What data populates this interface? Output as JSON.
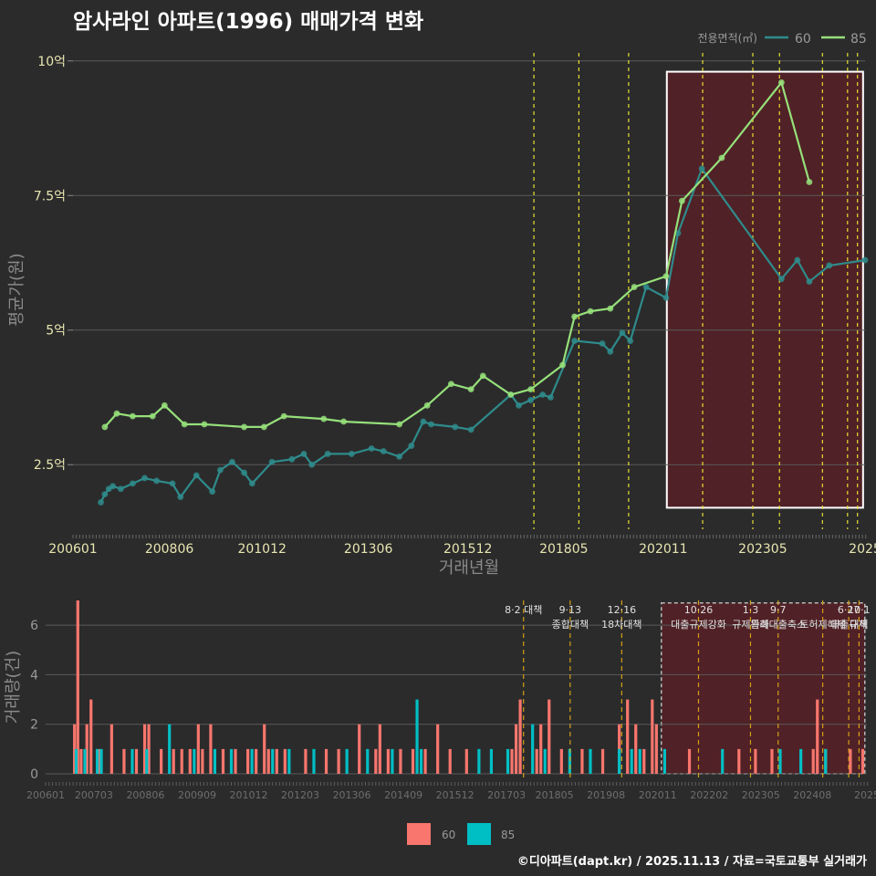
{
  "title": "암사라인 아파트(1996) 매매가격 변화",
  "credit": "©디아파트(dapt.kr) / 2025.11.13 / 자료=국토교통부 실거래가",
  "colors": {
    "s60_line": "#2f8b8b",
    "s85_line": "#96e07a",
    "bar60": "#f8766d",
    "bar85": "#00bfc4",
    "policy": "#e8e030",
    "policy2": "#d4a017",
    "highlight": "#5a1f26",
    "box": "#ffffff"
  },
  "chart_data": [
    {
      "type": "line",
      "title": "암사라인 아파트(1996) 매매가격 변화",
      "xlabel": "거래년월",
      "ylabel": "평균가(원)",
      "legend_title": "전용면적(㎡)",
      "legend_position": "top-right",
      "xlim": [
        2006.0,
        2025.9
      ],
      "ylim": [
        1.3,
        10.2
      ],
      "x_ticks": [
        {
          "x": 2006.0,
          "label": "200601"
        },
        {
          "x": 2008.42,
          "label": "200806"
        },
        {
          "x": 2010.75,
          "label": "201012"
        },
        {
          "x": 2013.42,
          "label": "201306"
        },
        {
          "x": 2015.92,
          "label": "201512"
        },
        {
          "x": 2018.33,
          "label": "201805"
        },
        {
          "x": 2020.83,
          "label": "202011"
        },
        {
          "x": 2023.33,
          "label": "202305"
        },
        {
          "x": 2025.9,
          "label": "2025"
        }
      ],
      "y_ticks": [
        {
          "y": 2.5,
          "label": "2.5억"
        },
        {
          "y": 5,
          "label": "5억"
        },
        {
          "y": 7.5,
          "label": "7.5억"
        },
        {
          "y": 10,
          "label": "10억"
        }
      ],
      "policy_lines": [
        2017.58,
        2018.71,
        2019.96,
        2021.82,
        2023.08,
        2023.75,
        2024.83,
        2025.46,
        2025.71
      ],
      "highlight": {
        "x0": 2020.92,
        "x1": 2025.85,
        "y0": 1.7,
        "y1": 9.8
      },
      "series": [
        {
          "name": "60",
          "x": [
            2006.7,
            2006.8,
            2006.9,
            2007.0,
            2007.2,
            2007.5,
            2007.8,
            2008.1,
            2008.5,
            2008.7,
            2009.1,
            2009.5,
            2009.7,
            2010.0,
            2010.3,
            2010.5,
            2011.0,
            2011.5,
            2011.8,
            2012.0,
            2012.4,
            2013.0,
            2013.5,
            2013.8,
            2014.2,
            2014.5,
            2014.8,
            2015.0,
            2015.6,
            2016.0,
            2017.0,
            2017.2,
            2017.5,
            2017.8,
            2018.0,
            2018.6,
            2019.3,
            2019.5,
            2019.8,
            2020.0,
            2020.4,
            2020.9,
            2021.2,
            2021.8,
            2023.8,
            2024.2,
            2024.5,
            2025.0,
            2025.9
          ],
          "values": [
            1.8,
            1.95,
            2.05,
            2.1,
            2.05,
            2.15,
            2.25,
            2.2,
            2.15,
            1.9,
            2.3,
            2.0,
            2.4,
            2.55,
            2.35,
            2.15,
            2.55,
            2.6,
            2.7,
            2.5,
            2.7,
            2.7,
            2.8,
            2.75,
            2.65,
            2.85,
            3.3,
            3.25,
            3.2,
            3.15,
            3.8,
            3.6,
            3.7,
            3.8,
            3.75,
            4.8,
            4.75,
            4.6,
            4.95,
            4.8,
            5.8,
            5.6,
            6.8,
            8.0,
            5.95,
            6.3,
            5.9,
            6.2,
            6.3
          ]
        },
        {
          "name": "85",
          "x": [
            2006.8,
            2007.1,
            2007.5,
            2008.0,
            2008.3,
            2008.8,
            2009.3,
            2010.3,
            2010.8,
            2011.3,
            2012.3,
            2012.8,
            2014.2,
            2014.9,
            2015.5,
            2016.0,
            2016.3,
            2017.0,
            2017.5,
            2018.3,
            2018.6,
            2019.0,
            2019.5,
            2020.1,
            2020.9,
            2021.3,
            2022.3,
            2023.8,
            2024.5
          ],
          "values": [
            3.2,
            3.45,
            3.4,
            3.4,
            3.6,
            3.25,
            3.25,
            3.2,
            3.2,
            3.4,
            3.35,
            3.3,
            3.25,
            3.6,
            4.0,
            3.9,
            4.15,
            3.8,
            3.9,
            4.35,
            5.25,
            5.35,
            5.4,
            5.8,
            6.0,
            7.4,
            8.2,
            9.6,
            7.75
          ]
        }
      ]
    },
    {
      "type": "bar",
      "ylabel": "거래량(건)",
      "xlim": [
        2006.0,
        2025.9
      ],
      "ylim": [
        0,
        7
      ],
      "x_ticks": [
        {
          "x": 2006.0,
          "label": "200601"
        },
        {
          "x": 2007.17,
          "label": "200703"
        },
        {
          "x": 2008.42,
          "label": "200806"
        },
        {
          "x": 2009.67,
          "label": "200909"
        },
        {
          "x": 2010.92,
          "label": "201012"
        },
        {
          "x": 2012.17,
          "label": "201203"
        },
        {
          "x": 2013.42,
          "label": "201306"
        },
        {
          "x": 2014.67,
          "label": "201409"
        },
        {
          "x": 2015.92,
          "label": "201512"
        },
        {
          "x": 2017.17,
          "label": "201703"
        },
        {
          "x": 2018.33,
          "label": "201805"
        },
        {
          "x": 2019.58,
          "label": "201908"
        },
        {
          "x": 2020.83,
          "label": "202011"
        },
        {
          "x": 2022.08,
          "label": "202202"
        },
        {
          "x": 2023.33,
          "label": "202305"
        },
        {
          "x": 2024.58,
          "label": "202408"
        },
        {
          "x": 2025.9,
          "label": "2025"
        }
      ],
      "y_ticks": [
        {
          "y": 0,
          "label": "0"
        },
        {
          "y": 2,
          "label": "2"
        },
        {
          "y": 4,
          "label": "4"
        },
        {
          "y": 6,
          "label": "6"
        }
      ],
      "legend": [
        {
          "name": "60"
        },
        {
          "name": "85"
        }
      ],
      "legend_position": "bottom",
      "highlight": {
        "x0": 2020.92,
        "x1": 2025.85,
        "y0": 0,
        "y1": 6.9
      },
      "annotations": [
        {
          "x": 2017.58,
          "lines": [
            "8·2 대책"
          ]
        },
        {
          "x": 2018.71,
          "lines": [
            "9·13",
            "종합대책"
          ]
        },
        {
          "x": 2019.96,
          "lines": [
            "12·16",
            "18차대책"
          ]
        },
        {
          "x": 2021.82,
          "lines": [
            "10·26",
            "대출규제강화"
          ]
        },
        {
          "x": 2023.08,
          "lines": [
            "1·3",
            "규제완화"
          ]
        },
        {
          "x": 2023.75,
          "lines": [
            "9·7",
            "특례대출축소"
          ]
        },
        {
          "x": 2024.83,
          "lines": [
            "",
            "토허제해제"
          ]
        },
        {
          "x": 2025.46,
          "lines": [
            "6·27",
            "대출규제"
          ]
        },
        {
          "x": 2025.71,
          "lines": [
            "10·1",
            "대책"
          ]
        }
      ],
      "series": [
        {
          "name": "60",
          "x": [
            2006.7,
            2006.78,
            2006.86,
            2007.0,
            2007.1,
            2007.3,
            2007.6,
            2007.9,
            2008.2,
            2008.4,
            2008.5,
            2008.8,
            2009.1,
            2009.3,
            2009.5,
            2009.7,
            2009.8,
            2010.0,
            2010.3,
            2010.6,
            2010.9,
            2011.1,
            2011.3,
            2011.4,
            2011.6,
            2011.8,
            2012.3,
            2012.8,
            2013.1,
            2013.6,
            2014.0,
            2014.1,
            2014.3,
            2014.6,
            2014.9,
            2015.2,
            2015.5,
            2015.8,
            2016.2,
            2017.3,
            2017.4,
            2017.5,
            2017.9,
            2018.0,
            2018.2,
            2018.5,
            2019.0,
            2019.5,
            2019.9,
            2020.1,
            2020.3,
            2020.5,
            2020.7,
            2020.8,
            2021.6,
            2022.8,
            2023.2,
            2023.6,
            2024.6,
            2024.7,
            2024.9,
            2025.5,
            2025.8
          ],
          "values": [
            2,
            7,
            1,
            2,
            3,
            1,
            2,
            1,
            1,
            2,
            2,
            1,
            1,
            1,
            1,
            2,
            1,
            2,
            1,
            1,
            1,
            1,
            2,
            1,
            1,
            1,
            1,
            1,
            1,
            2,
            1,
            2,
            1,
            1,
            1,
            1,
            2,
            1,
            1,
            1,
            2,
            3,
            1,
            2,
            3,
            1,
            1,
            1,
            2,
            3,
            2,
            1,
            3,
            2,
            1,
            1,
            1,
            1,
            1,
            3,
            1,
            1,
            1
          ]
        },
        {
          "name": "85",
          "x": [
            2006.74,
            2006.95,
            2007.25,
            2007.35,
            2008.1,
            2008.45,
            2009.0,
            2009.6,
            2010.1,
            2010.5,
            2011.0,
            2011.5,
            2011.9,
            2012.5,
            2013.3,
            2013.8,
            2014.4,
            2015.0,
            2015.1,
            2016.5,
            2016.8,
            2017.2,
            2017.8,
            2018.1,
            2018.7,
            2019.2,
            2019.9,
            2020.2,
            2020.4,
            2021.0,
            2022.4,
            2023.8,
            2024.3,
            2024.9
          ],
          "values": [
            1,
            1,
            1,
            1,
            1,
            1,
            2,
            1,
            1,
            1,
            1,
            1,
            1,
            1,
            1,
            1,
            1,
            3,
            1,
            1,
            1,
            1,
            2,
            1,
            1,
            1,
            1,
            1,
            1,
            1,
            1,
            1,
            1,
            1
          ]
        }
      ]
    }
  ]
}
